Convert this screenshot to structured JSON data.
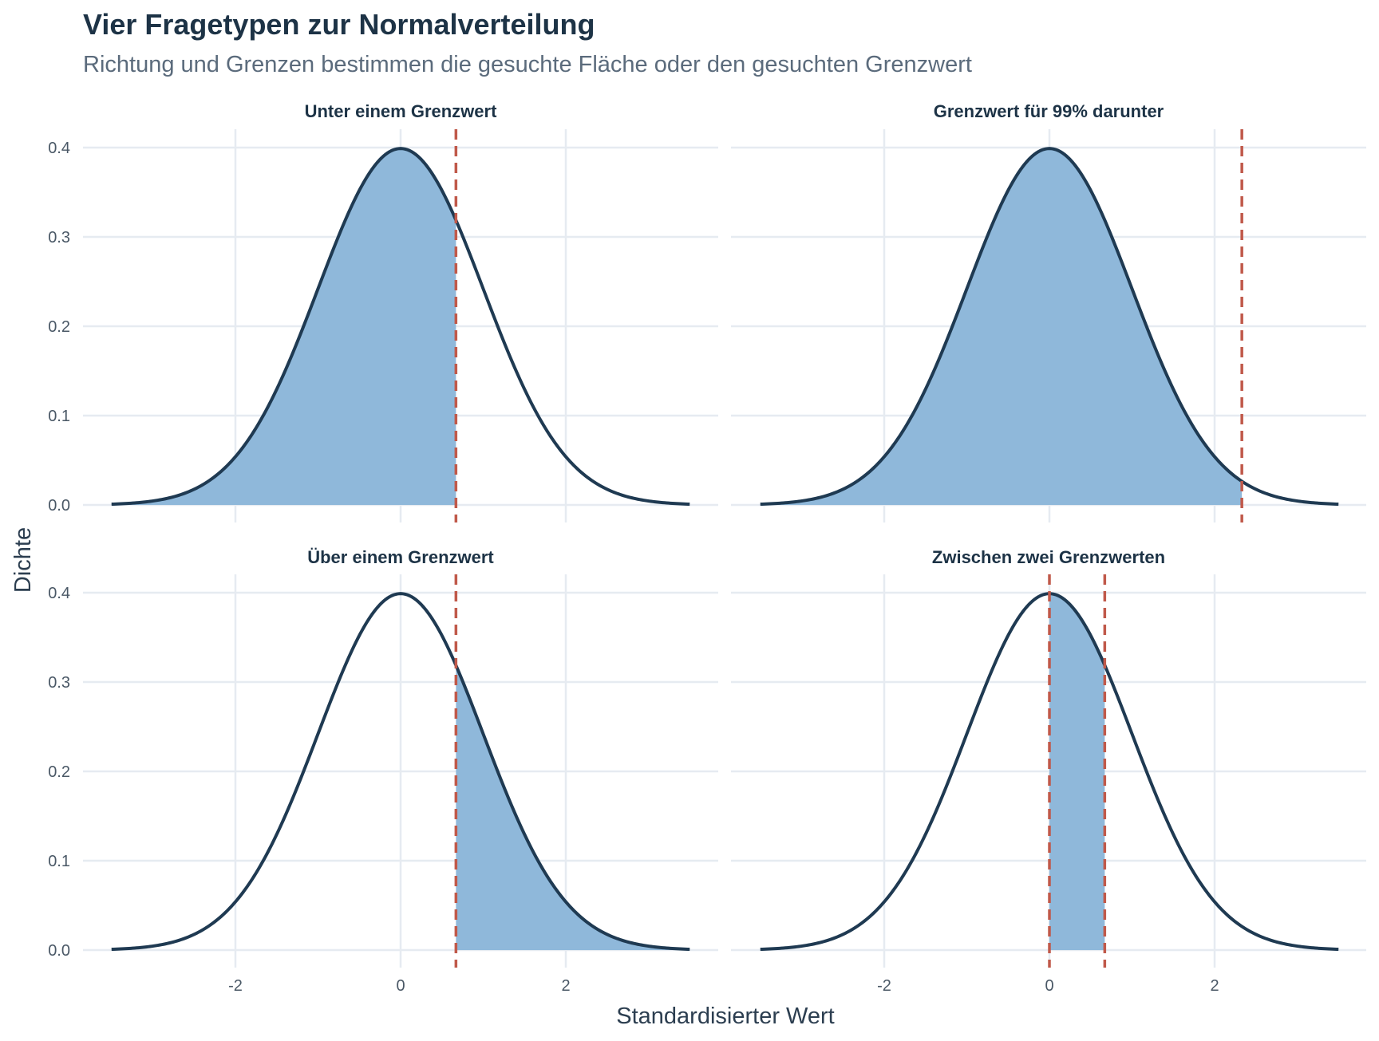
{
  "title": "Vier Fragetypen zur Normalverteilung",
  "subtitle": "Richtung und Grenzen bestimmen die gesuchte Fläche oder den gesuchten Grenzwert",
  "chart_data": {
    "type": "area",
    "xlabel": "Standardisierter Wert",
    "ylabel": "Dichte",
    "xlim": [
      -3.5,
      3.5
    ],
    "ylim": [
      0,
      0.4
    ],
    "x_ticks": [
      -2,
      0,
      2
    ],
    "x_tick_labels": [
      "-2",
      "0",
      "2"
    ],
    "y_ticks": [
      0,
      0.1,
      0.2,
      0.3,
      0.4
    ],
    "y_tick_labels": [
      "0.0",
      "0.1",
      "0.2",
      "0.3",
      "0.4"
    ],
    "grid": true,
    "curve": "normal density, mean 0, sd 1",
    "colors": {
      "curve": "#1f3a52",
      "fill": "#8fb8da",
      "cutoff": "#c0594a",
      "grid": "#e6ebf1"
    },
    "panels": [
      {
        "title": "Unter einem Grenzwert",
        "cutoffs": [
          0.67
        ],
        "shade_from": -3.5,
        "shade_to": 0.67
      },
      {
        "title": "Grenzwert für 99% darunter",
        "cutoffs": [
          2.33
        ],
        "shade_from": -3.5,
        "shade_to": 2.33
      },
      {
        "title": "Über einem Grenzwert",
        "cutoffs": [
          0.67
        ],
        "shade_from": 0.67,
        "shade_to": 3.5
      },
      {
        "title": "Zwischen zwei Grenzwerten",
        "cutoffs": [
          0,
          0.67
        ],
        "shade_from": 0,
        "shade_to": 0.67
      }
    ]
  }
}
